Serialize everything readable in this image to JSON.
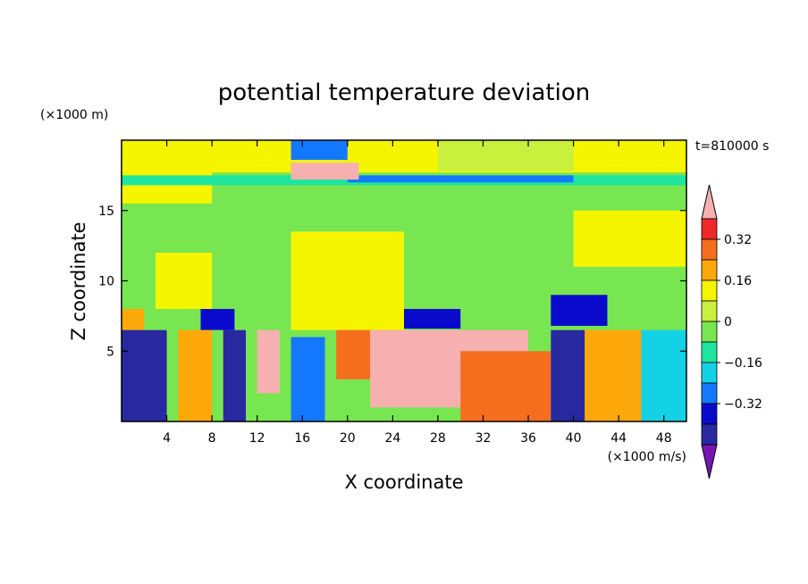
{
  "chart_data": {
    "type": "heatmap",
    "title": "potential temperature deviation",
    "xlabel": "X coordinate",
    "ylabel": "Z coordinate",
    "x_unit": "(×1000 m/s)",
    "y_unit": "(×1000 m)",
    "time_label": "t=810000 s",
    "xlim": [
      0,
      50
    ],
    "ylim": [
      0,
      20
    ],
    "x_ticks": [
      4,
      8,
      12,
      16,
      20,
      24,
      28,
      32,
      36,
      40,
      44,
      48
    ],
    "y_ticks": [
      5,
      10,
      15
    ],
    "colorbar": {
      "labels": [
        "0.32",
        "0.16",
        "0",
        "−0.16",
        "−0.32"
      ],
      "label_values": [
        0.32,
        0.16,
        0,
        -0.16,
        -0.32
      ],
      "colors": [
        "#f7b0b0",
        "#f02828",
        "#f56e1e",
        "#fca80a",
        "#f5f500",
        "#c8f03c",
        "#78e650",
        "#1ee6a0",
        "#14d2e6",
        "#1478ff",
        "#0a0acd",
        "#2828a0",
        "#7814b4"
      ],
      "extend": "both"
    },
    "regions": [
      {
        "x": [
          0,
          50
        ],
        "y": [
          6.5,
          20
        ],
        "value": 0.0
      },
      {
        "x": [
          0,
          50
        ],
        "y": [
          17.7,
          20
        ],
        "value": 0.14
      },
      {
        "x": [
          0,
          8
        ],
        "y": [
          15.5,
          20
        ],
        "value": 0.14
      },
      {
        "x": [
          28,
          40
        ],
        "y": [
          17.8,
          20
        ],
        "value": 0.05
      },
      {
        "x": [
          0,
          50
        ],
        "y": [
          16.8,
          17.5
        ],
        "value": -0.12
      },
      {
        "x": [
          15,
          20
        ],
        "y": [
          18.6,
          20
        ],
        "value": -0.3
      },
      {
        "x": [
          20,
          40
        ],
        "y": [
          17.0,
          17.5
        ],
        "value": -0.25
      },
      {
        "x": [
          15,
          21
        ],
        "y": [
          17.2,
          18.4
        ],
        "value": 0.42
      },
      {
        "x": [
          15,
          25
        ],
        "y": [
          6.5,
          13.5
        ],
        "value": 0.12
      },
      {
        "x": [
          3,
          8
        ],
        "y": [
          8,
          12
        ],
        "value": 0.08
      },
      {
        "x": [
          40,
          50
        ],
        "y": [
          11,
          15
        ],
        "value": 0.08
      },
      {
        "x": [
          0,
          2
        ],
        "y": [
          6.5,
          8
        ],
        "value": 0.22
      },
      {
        "x": [
          7,
          10
        ],
        "y": [
          6.5,
          8
        ],
        "value": -0.32
      },
      {
        "x": [
          25,
          30
        ],
        "y": [
          6.6,
          8
        ],
        "value": -0.32
      },
      {
        "x": [
          38,
          43
        ],
        "y": [
          6.8,
          9
        ],
        "value": -0.32
      },
      {
        "x": [
          0,
          50
        ],
        "y": [
          0,
          6.5
        ],
        "value": 0.0
      },
      {
        "x": [
          0,
          4
        ],
        "y": [
          0,
          6.5
        ],
        "value": -0.45
      },
      {
        "x": [
          9,
          11
        ],
        "y": [
          0,
          6.5
        ],
        "value": -0.45
      },
      {
        "x": [
          5,
          8
        ],
        "y": [
          0,
          6.5
        ],
        "value": 0.2
      },
      {
        "x": [
          12,
          14
        ],
        "y": [
          2,
          6.5
        ],
        "value": 0.4
      },
      {
        "x": [
          15,
          18
        ],
        "y": [
          0,
          6
        ],
        "value": -0.3
      },
      {
        "x": [
          19,
          25
        ],
        "y": [
          3,
          6.5
        ],
        "value": 0.3
      },
      {
        "x": [
          22,
          36
        ],
        "y": [
          1,
          6.5
        ],
        "value": 0.42
      },
      {
        "x": [
          30,
          38
        ],
        "y": [
          0,
          5
        ],
        "value": 0.3
      },
      {
        "x": [
          38,
          41
        ],
        "y": [
          0,
          6.5
        ],
        "value": -0.4
      },
      {
        "x": [
          41,
          46
        ],
        "y": [
          0,
          6.5
        ],
        "value": 0.2
      },
      {
        "x": [
          46,
          50
        ],
        "y": [
          0,
          6.5
        ],
        "value": -0.2
      }
    ]
  }
}
